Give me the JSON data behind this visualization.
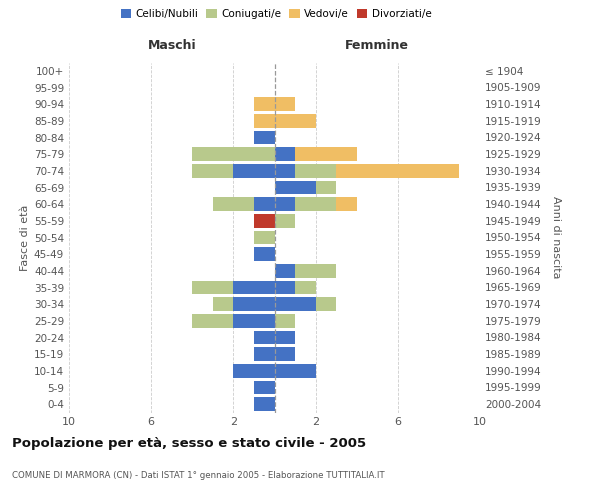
{
  "age_groups": [
    "0-4",
    "5-9",
    "10-14",
    "15-19",
    "20-24",
    "25-29",
    "30-34",
    "35-39",
    "40-44",
    "45-49",
    "50-54",
    "55-59",
    "60-64",
    "65-69",
    "70-74",
    "75-79",
    "80-84",
    "85-89",
    "90-94",
    "95-99",
    "100+"
  ],
  "birth_years": [
    "2000-2004",
    "1995-1999",
    "1990-1994",
    "1985-1989",
    "1980-1984",
    "1975-1979",
    "1970-1974",
    "1965-1969",
    "1960-1964",
    "1955-1959",
    "1950-1954",
    "1945-1949",
    "1940-1944",
    "1935-1939",
    "1930-1934",
    "1925-1929",
    "1920-1924",
    "1915-1919",
    "1910-1914",
    "1905-1909",
    "≤ 1904"
  ],
  "males": {
    "celibi": [
      1,
      1,
      2,
      1,
      1,
      2,
      2,
      2,
      0,
      1,
      0,
      0,
      1,
      0,
      2,
      0,
      1,
      0,
      0,
      0,
      0
    ],
    "coniugati": [
      0,
      0,
      0,
      0,
      0,
      2,
      1,
      2,
      0,
      0,
      1,
      0,
      2,
      0,
      2,
      4,
      0,
      0,
      0,
      0,
      0
    ],
    "vedovi": [
      0,
      0,
      0,
      0,
      0,
      0,
      0,
      0,
      0,
      0,
      0,
      0,
      0,
      0,
      0,
      0,
      0,
      1,
      1,
      0,
      0
    ],
    "divorziati": [
      0,
      0,
      0,
      0,
      0,
      0,
      0,
      0,
      0,
      0,
      0,
      1,
      0,
      0,
      0,
      0,
      0,
      0,
      0,
      0,
      0
    ]
  },
  "females": {
    "nubili": [
      0,
      0,
      2,
      1,
      1,
      0,
      2,
      1,
      1,
      0,
      0,
      0,
      1,
      2,
      1,
      1,
      0,
      0,
      0,
      0,
      0
    ],
    "coniugate": [
      0,
      0,
      0,
      0,
      0,
      1,
      1,
      1,
      2,
      0,
      0,
      1,
      2,
      1,
      2,
      0,
      0,
      0,
      0,
      0,
      0
    ],
    "vedove": [
      0,
      0,
      0,
      0,
      0,
      0,
      0,
      0,
      0,
      0,
      0,
      0,
      1,
      0,
      6,
      3,
      0,
      2,
      1,
      0,
      0
    ],
    "divorziate": [
      0,
      0,
      0,
      0,
      0,
      0,
      0,
      0,
      0,
      0,
      0,
      0,
      0,
      0,
      0,
      0,
      0,
      0,
      0,
      0,
      0
    ]
  },
  "color_celibi": "#4472c4",
  "color_coniugati": "#b8c98c",
  "color_vedovi": "#f0be64",
  "color_divorziati": "#c0392b",
  "xlim": 10,
  "title": "Popolazione per età, sesso e stato civile - 2005",
  "subtitle": "COMUNE DI MARMORA (CN) - Dati ISTAT 1° gennaio 2005 - Elaborazione TUTTITALIA.IT",
  "ylabel_left": "Fasce di età",
  "ylabel_right": "Anni di nascita",
  "header_left": "Maschi",
  "header_right": "Femmine"
}
